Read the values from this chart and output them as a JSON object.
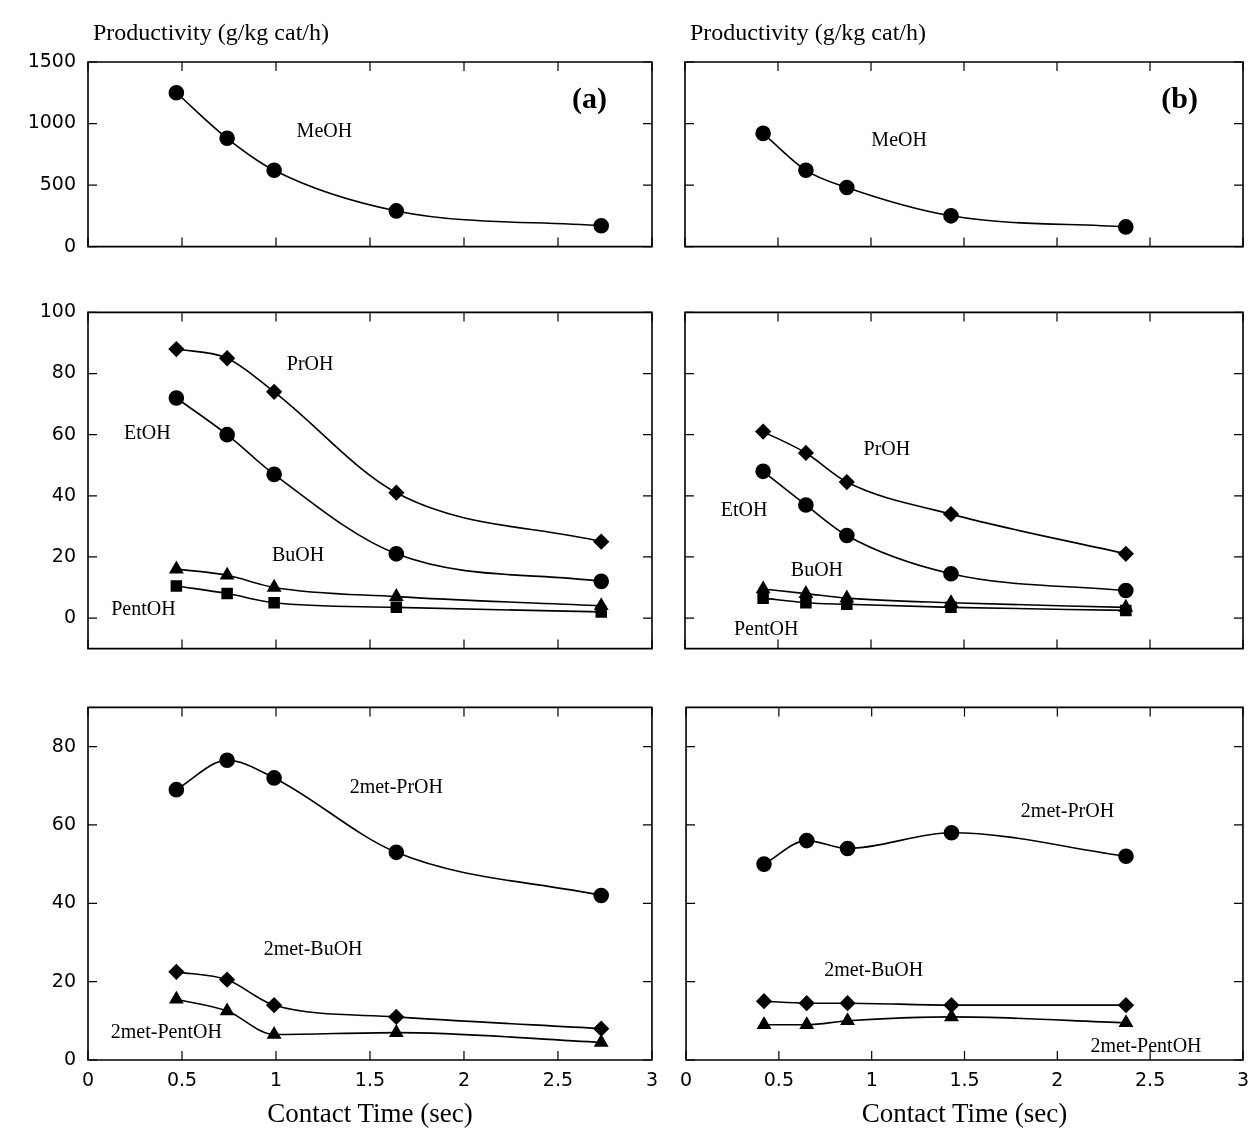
{
  "chart_data": [
    {
      "type": "line",
      "ylabel": "Productivity (g/kg cat/h)",
      "annotations": [
        "(a)"
      ],
      "xlim": [
        0,
        3
      ],
      "xticks": [
        0,
        0.5,
        1,
        1.5,
        2,
        2.5,
        3
      ],
      "ylim": [
        0,
        1500
      ],
      "yticks": [
        0,
        500,
        1000,
        1500
      ],
      "tick_labels": "y",
      "grid": false,
      "legend": false,
      "x": [
        0.47,
        0.74,
        0.99,
        1.64,
        2.73
      ],
      "series": [
        {
          "name": "MeOH",
          "color": "#000000",
          "marker": "circle",
          "values": [
            1250,
            880,
            620,
            290,
            170
          ]
        }
      ]
    },
    {
      "type": "line",
      "ylabel": "Productivity (g/kg cat/h)",
      "annotations": [
        "(b)"
      ],
      "xlim": [
        0,
        3
      ],
      "xticks": [
        0,
        0.5,
        1,
        1.5,
        2,
        2.5,
        3
      ],
      "ylim": [
        0,
        1500
      ],
      "yticks": [
        0,
        500,
        1000,
        1500
      ],
      "tick_labels": false,
      "grid": false,
      "legend": false,
      "x": [
        0.42,
        0.65,
        0.87,
        1.43,
        2.37
      ],
      "series": [
        {
          "name": "MeOH",
          "color": "#000000",
          "marker": "circle",
          "values": [
            920,
            620,
            480,
            250,
            160
          ]
        }
      ]
    },
    {
      "type": "line",
      "xlim": [
        0,
        3
      ],
      "xticks": [
        0,
        0.5,
        1,
        1.5,
        2,
        2.5,
        3
      ],
      "ylim": [
        -10,
        100
      ],
      "yticks": [
        0,
        20,
        40,
        60,
        80,
        100
      ],
      "tick_labels": "y",
      "grid": false,
      "legend": false,
      "x": [
        0.47,
        0.74,
        0.99,
        1.64,
        2.73
      ],
      "series": [
        {
          "name": "PrOH",
          "color": "#000000",
          "marker": "diamond",
          "values": [
            88,
            85,
            74,
            41,
            25
          ]
        },
        {
          "name": "EtOH",
          "color": "#000000",
          "marker": "circle",
          "values": [
            72,
            60,
            47,
            21,
            12
          ]
        },
        {
          "name": "BuOH",
          "color": "#000000",
          "marker": "triangle",
          "values": [
            16,
            14,
            10,
            7,
            4
          ]
        },
        {
          "name": "PentOH",
          "color": "#000000",
          "marker": "square",
          "values": [
            10.5,
            8,
            5,
            3.5,
            2
          ]
        }
      ]
    },
    {
      "type": "line",
      "xlim": [
        0,
        3
      ],
      "xticks": [
        0,
        0.5,
        1,
        1.5,
        2,
        2.5,
        3
      ],
      "ylim": [
        -10,
        100
      ],
      "yticks": [
        0,
        20,
        40,
        60,
        80,
        100
      ],
      "tick_labels": false,
      "grid": false,
      "legend": false,
      "x": [
        0.42,
        0.65,
        0.87,
        1.43,
        2.37
      ],
      "series": [
        {
          "name": "PrOH",
          "color": "#000000",
          "marker": "diamond",
          "values": [
            61,
            54,
            44.5,
            34,
            21
          ]
        },
        {
          "name": "EtOH",
          "color": "#000000",
          "marker": "circle",
          "values": [
            48,
            37,
            27,
            14.5,
            9
          ]
        },
        {
          "name": "BuOH",
          "color": "#000000",
          "marker": "triangle",
          "values": [
            9.5,
            8,
            6.5,
            5,
            3.5
          ]
        },
        {
          "name": "PentOH",
          "color": "#000000",
          "marker": "square",
          "values": [
            6.5,
            5,
            4.5,
            3.5,
            2.5
          ]
        }
      ]
    },
    {
      "type": "line",
      "xlabel": "Contact Time (sec)",
      "xlim": [
        0,
        3
      ],
      "xticks": [
        0,
        0.5,
        1,
        1.5,
        2,
        2.5,
        3
      ],
      "ylim": [
        0,
        90
      ],
      "yticks": [
        0,
        20,
        40,
        60,
        80
      ],
      "grid": false,
      "legend": false,
      "x": [
        0.47,
        0.74,
        0.99,
        1.64,
        2.73
      ],
      "series": [
        {
          "name": "2met-PrOH",
          "color": "#000000",
          "marker": "circle",
          "values": [
            69,
            76.5,
            72,
            53,
            42
          ]
        },
        {
          "name": "2met-BuOH",
          "color": "#000000",
          "marker": "diamond",
          "values": [
            22.5,
            20.5,
            14,
            11,
            8
          ]
        },
        {
          "name": "2met-PentOH",
          "color": "#000000",
          "marker": "triangle",
          "values": [
            15.5,
            12.5,
            6.5,
            7,
            4.5
          ]
        }
      ]
    },
    {
      "type": "line",
      "xlabel": "Contact Time (sec)",
      "xlim": [
        0,
        3
      ],
      "xticks": [
        0,
        0.5,
        1,
        1.5,
        2,
        2.5,
        3
      ],
      "ylim": [
        0,
        90
      ],
      "yticks": [
        0,
        20,
        40,
        60,
        80
      ],
      "tick_labels": "x",
      "grid": false,
      "legend": false,
      "x": [
        0.42,
        0.65,
        0.87,
        1.43,
        2.37
      ],
      "series": [
        {
          "name": "2met-PrOH",
          "color": "#000000",
          "marker": "circle",
          "values": [
            50,
            56,
            54,
            58,
            52
          ]
        },
        {
          "name": "2met-BuOH",
          "color": "#000000",
          "marker": "diamond",
          "values": [
            15,
            14.5,
            14.5,
            14,
            14
          ]
        },
        {
          "name": "2met-PentOH",
          "color": "#000000",
          "marker": "triangle",
          "values": [
            9,
            9,
            10,
            11,
            9.5
          ]
        }
      ]
    }
  ]
}
